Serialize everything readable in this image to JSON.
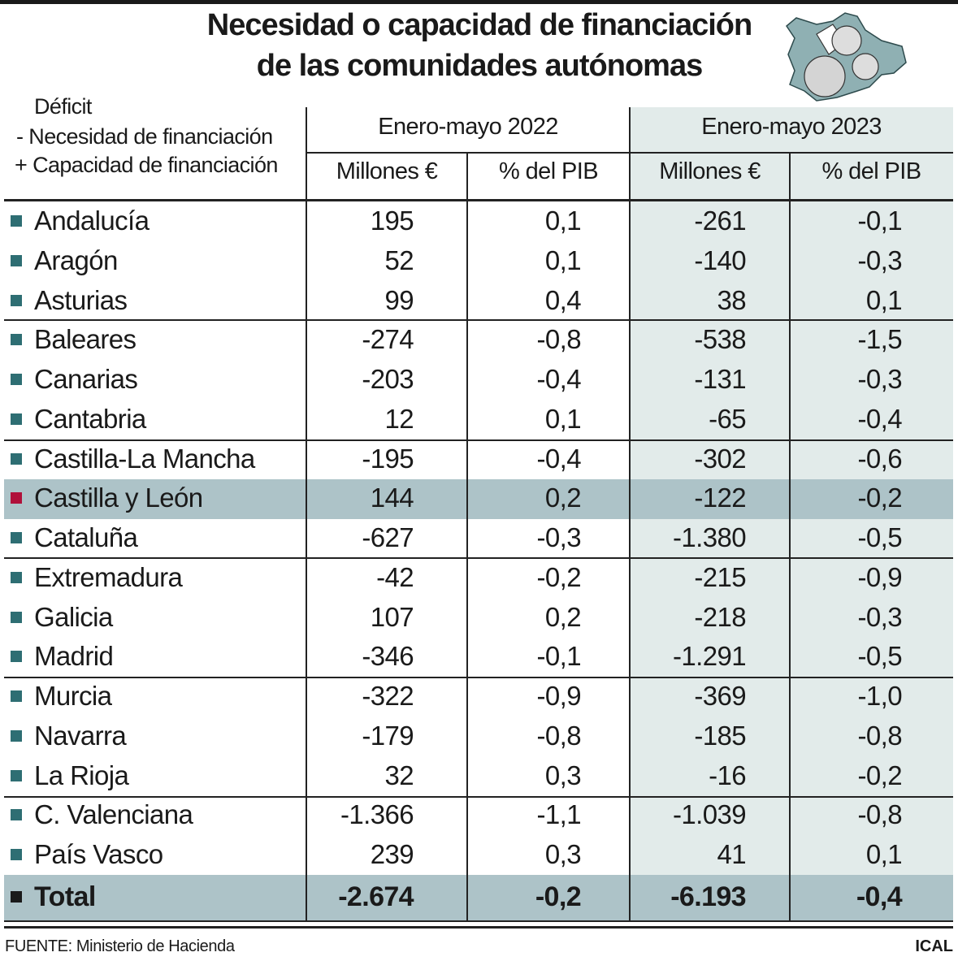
{
  "title": {
    "line1": "Necesidad o capacidad de financiación",
    "line2": "de las comunidades autónomas"
  },
  "legend": {
    "line1": "Déficit",
    "line2": "-  Necesidad de financiación",
    "line3": "+ Capacidad de financiación"
  },
  "columns": {
    "period1": "Enero-mayo 2022",
    "period2": "Enero-mayo 2023",
    "sub": [
      "Millones €",
      "% del PIB",
      "Millones €",
      "% del PIB"
    ]
  },
  "rows": [
    {
      "name": "Andalucía",
      "v": [
        "195",
        "0,1",
        "-261",
        "-0,1"
      ]
    },
    {
      "name": "Aragón",
      "v": [
        "52",
        "0,1",
        "-140",
        "-0,3"
      ]
    },
    {
      "name": "Asturias",
      "v": [
        "99",
        "0,4",
        "38",
        "0,1"
      ]
    },
    {
      "name": "Baleares",
      "v": [
        "-274",
        "-0,8",
        "-538",
        "-1,5"
      ]
    },
    {
      "name": "Canarias",
      "v": [
        "-203",
        "-0,4",
        "-131",
        "-0,3"
      ]
    },
    {
      "name": "Cantabria",
      "v": [
        "12",
        "0,1",
        "-65",
        "-0,4"
      ]
    },
    {
      "name": "Castilla-La Mancha",
      "v": [
        "-195",
        "-0,4",
        "-302",
        "-0,6"
      ]
    },
    {
      "name": "Castilla y León",
      "v": [
        "144",
        "0,2",
        "-122",
        "-0,2"
      ]
    },
    {
      "name": "Cataluña",
      "v": [
        "-627",
        "-0,3",
        "-1.380",
        "-0,5"
      ]
    },
    {
      "name": "Extremadura",
      "v": [
        "-42",
        "-0,2",
        "-215",
        "-0,9"
      ]
    },
    {
      "name": "Galicia",
      "v": [
        "107",
        "0,2",
        "-218",
        "-0,3"
      ]
    },
    {
      "name": "Madrid",
      "v": [
        "-346",
        "-0,1",
        "-1.291",
        "-0,5"
      ]
    },
    {
      "name": "Murcia",
      "v": [
        "-322",
        "-0,9",
        "-369",
        "-1,0"
      ]
    },
    {
      "name": "Navarra",
      "v": [
        "-179",
        "-0,8",
        "-185",
        "-0,8"
      ]
    },
    {
      "name": "La Rioja",
      "v": [
        "32",
        "0,3",
        "-16",
        "-0,2"
      ]
    },
    {
      "name": "C. Valenciana",
      "v": [
        "-1.366",
        "-1,1",
        "-1.039",
        "-0,8"
      ]
    },
    {
      "name": "País Vasco",
      "v": [
        "239",
        "0,3",
        "41",
        "0,1"
      ]
    }
  ],
  "highlighted_row": "Castilla y León",
  "total": {
    "name": "Total",
    "v": [
      "-2.674",
      "-0,2",
      "-6.193",
      "-0,4"
    ]
  },
  "source": "FUENTE: Ministerio de Hacienda",
  "credit": "ICAL",
  "colors": {
    "bullet": "#2e6e73",
    "highlight_bullet": "#b0103a",
    "highlight_row": "#adc3c8",
    "column_2023": "#e2ebea"
  },
  "logo_icon": "castilla-y-leon-map-with-euro-coins"
}
